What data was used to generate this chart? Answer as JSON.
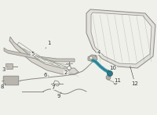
{
  "bg_color": "#f0f0eb",
  "line_color": "#888880",
  "cable_color": "#3a9aaa",
  "label_color": "#333333",
  "label_fontsize": 5.0,
  "hatch_color": "#aaaaaa"
}
